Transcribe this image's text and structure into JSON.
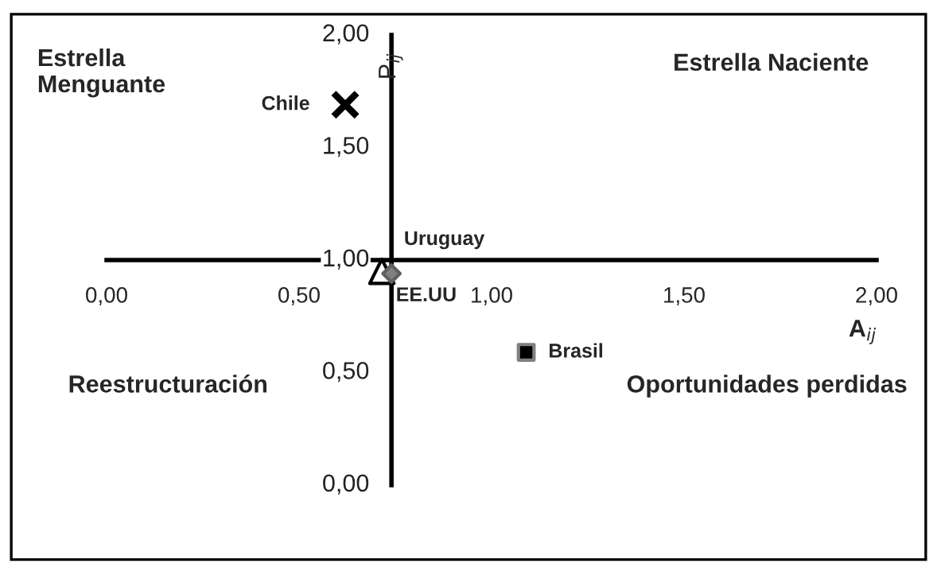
{
  "chart_data": {
    "type": "scatter",
    "xlabel": "A$_{ij}$",
    "ylabel": "P$_{ij}$",
    "series": [
      {
        "name": "Chile",
        "color": "#000000",
        "marker": "cross",
        "x": [
          0.62
        ],
        "values": [
          1.69
        ]
      },
      {
        "name": "Uruguay",
        "color": "#ffffff",
        "marker": "triangle",
        "x": [
          0.715
        ],
        "values": [
          0.95
        ]
      },
      {
        "name": "EE.UU",
        "color": "#808080",
        "marker": "diamond",
        "x": [
          0.74
        ],
        "values": [
          0.94
        ]
      },
      {
        "name": "Brasil",
        "color": "#000000",
        "marker": "square",
        "x": [
          1.09
        ],
        "values": [
          0.59
        ]
      }
    ],
    "xlim": [
      0,
      2
    ],
    "ylim": [
      0,
      2
    ],
    "xticks": [
      {
        "value": 0,
        "label": "0,00"
      },
      {
        "value": 0.5,
        "label": "0,50"
      },
      {
        "value": 1,
        "label": "1,00"
      },
      {
        "value": 1.5,
        "label": "1,50"
      },
      {
        "value": 2,
        "label": "2,00"
      }
    ],
    "yticks": [
      {
        "value": 0,
        "label": "0,00"
      },
      {
        "value": 0.5,
        "label": "0,50"
      },
      {
        "value": 1,
        "label": "1,00"
      },
      {
        "value": 1.5,
        "label": "1,50"
      },
      {
        "value": 2,
        "label": "2,00"
      }
    ],
    "annotations": [
      "Estrella\nMenguante",
      "Estrella Naciente",
      "Reestructuración",
      "Oportunidades perdidas"
    ],
    "grid": false,
    "legend": false
  }
}
